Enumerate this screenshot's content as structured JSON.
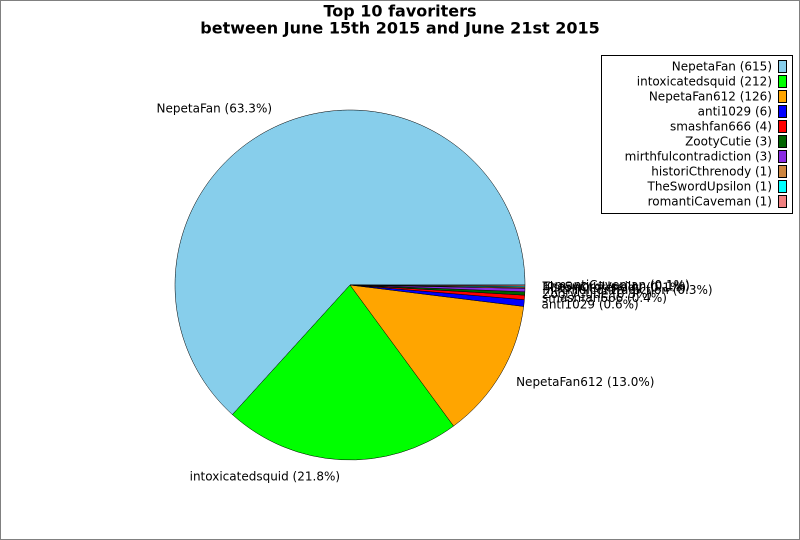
{
  "chart_data": {
    "type": "pie",
    "title": "Top 10 favoriters",
    "subtitle": "between June 15th 2015 and June 21st 2015",
    "categories": [
      "NepetaFan",
      "intoxicatedsquid",
      "NepetaFan612",
      "anti1029",
      "smashfan666",
      "ZootyCutie",
      "mirthfulcontradiction",
      "historiCthrenody",
      "TheSwordUpsilon",
      "romantiCaveman"
    ],
    "values": [
      615,
      212,
      126,
      6,
      4,
      3,
      3,
      1,
      1,
      1
    ],
    "slice_labels": [
      "NepetaFan (63.3%)",
      "intoxicatedsquid (21.8%)",
      "NepetaFan612 (13.0%)",
      "anti1029 (0.6%)",
      "smashfan666 (0.4%)",
      "ZootyCutie (0.3%)",
      "mirthfulcontradiction (0.3%)",
      "historiCthrenody (0.1%)",
      "TheSwordUpsilon (0.1%)",
      "romantiCaveman (0.1%)"
    ],
    "legend": [
      "NepetaFan (615)",
      "intoxicatedsquid (212)",
      "NepetaFan612 (126)",
      "anti1029 (6)",
      "smashfan666 (4)",
      "ZootyCutie (3)",
      "mirthfulcontradiction (3)",
      "historiCthrenody (1)",
      "TheSwordUpsilon (1)",
      "romantiCaveman (1)"
    ],
    "colors": [
      "#87ceeb",
      "#00ff00",
      "#ffa500",
      "#0000ff",
      "#ff0000",
      "#006400",
      "#8a2be2",
      "#cd853f",
      "#00ffff",
      "#f08080"
    ],
    "legend_position": "upper right"
  }
}
